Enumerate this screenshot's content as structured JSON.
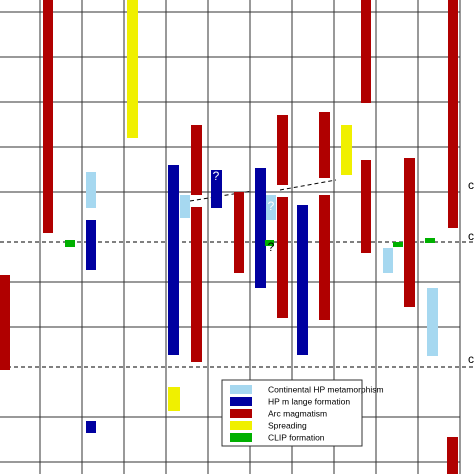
{
  "legend": {
    "items": [
      {
        "label": "Continental HP metamorphism",
        "color": "#a6d8f0"
      },
      {
        "label": "HP m lange formation",
        "color": "#0000a0"
      },
      {
        "label": "Arc magmatism",
        "color": "#b00000"
      },
      {
        "label": "Spreading",
        "color": "#f0f000"
      },
      {
        "label": "CLIP formation",
        "color": "#00b000"
      }
    ]
  },
  "question_marks": [
    "?",
    "?",
    "?"
  ],
  "edge_labels": [
    "c",
    "c",
    "c"
  ]
}
